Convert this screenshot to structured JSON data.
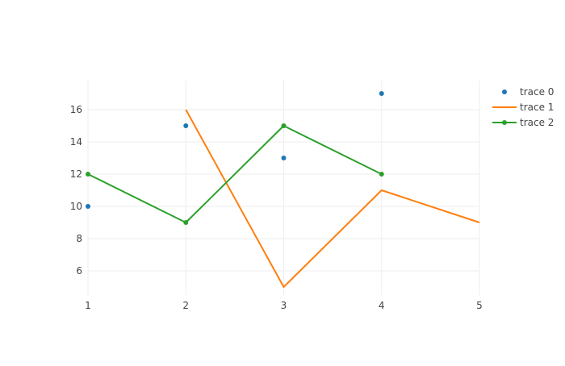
{
  "chart_data": {
    "type": "scatter",
    "title": "",
    "xlabel": "",
    "ylabel": "",
    "xlim": [
      1,
      5
    ],
    "ylim": [
      4.5,
      17.8
    ],
    "x_ticks": [
      1,
      2,
      3,
      4,
      5
    ],
    "x_tick_labels": [
      "1",
      "2",
      "3",
      "4",
      "5"
    ],
    "y_ticks": [
      6,
      8,
      10,
      12,
      14,
      16
    ],
    "y_tick_labels": [
      "6",
      "8",
      "10",
      "12",
      "14",
      "16"
    ],
    "grid": true,
    "legend_position": "top-right",
    "series": [
      {
        "name": "trace 0",
        "mode": "markers",
        "color": "#1f77b4",
        "x": [
          1,
          2,
          3,
          4
        ],
        "y": [
          10,
          15,
          13,
          17
        ]
      },
      {
        "name": "trace 1",
        "mode": "lines",
        "color": "#ff7f0e",
        "x": [
          2,
          3,
          4,
          5
        ],
        "y": [
          16,
          5,
          11,
          9
        ]
      },
      {
        "name": "trace 2",
        "mode": "lines+markers",
        "color": "#2ca02c",
        "x": [
          1,
          2,
          3,
          4
        ],
        "y": [
          12,
          9,
          15,
          12
        ]
      }
    ]
  }
}
